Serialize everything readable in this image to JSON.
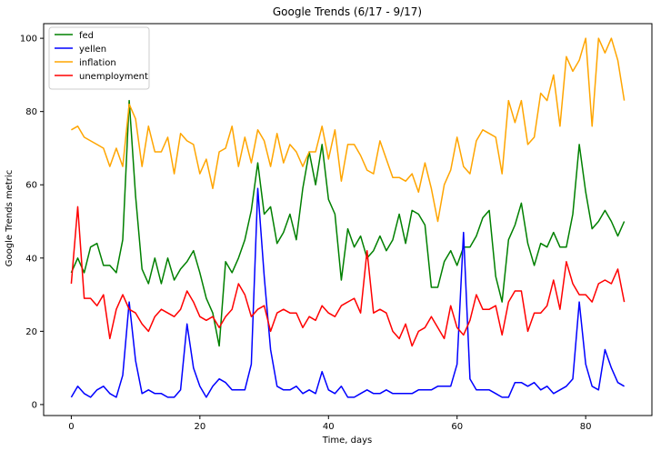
{
  "chart_data": {
    "type": "line",
    "title": "Google Trends (6/17 - 9/17)",
    "xlabel": "Time, days",
    "ylabel": "Google Trends metric",
    "xlim": [
      -4.3,
      90.3
    ],
    "ylim": [
      -3,
      104
    ],
    "xticks": [
      0,
      20,
      40,
      60,
      80
    ],
    "yticks": [
      0,
      20,
      40,
      60,
      80,
      100
    ],
    "grid": false,
    "legend_position": "top-left",
    "x": [
      0,
      1,
      2,
      3,
      4,
      5,
      6,
      7,
      8,
      9,
      10,
      11,
      12,
      13,
      14,
      15,
      16,
      17,
      18,
      19,
      20,
      21,
      22,
      23,
      24,
      25,
      26,
      27,
      28,
      29,
      30,
      31,
      32,
      33,
      34,
      35,
      36,
      37,
      38,
      39,
      40,
      41,
      42,
      43,
      44,
      45,
      46,
      47,
      48,
      49,
      50,
      51,
      52,
      53,
      54,
      55,
      56,
      57,
      58,
      59,
      60,
      61,
      62,
      63,
      64,
      65,
      66,
      67,
      68,
      69,
      70,
      71,
      72,
      73,
      74,
      75,
      76,
      77,
      78,
      79,
      80,
      81,
      82,
      83,
      84,
      85,
      86
    ],
    "series": [
      {
        "name": "fed",
        "color": "#008000",
        "values": [
          36,
          40,
          36,
          43,
          44,
          38,
          38,
          36,
          45,
          83,
          57,
          37,
          33,
          40,
          33,
          40,
          34,
          37,
          39,
          42,
          36,
          29,
          25,
          16,
          39,
          36,
          40,
          45,
          53,
          66,
          52,
          54,
          44,
          47,
          52,
          45,
          59,
          69,
          60,
          71,
          56,
          52,
          34,
          48,
          43,
          46,
          40,
          42,
          46,
          42,
          45,
          52,
          44,
          53,
          52,
          49,
          32,
          32,
          39,
          42,
          38,
          43,
          43,
          46,
          51,
          53,
          35,
          28,
          45,
          49,
          55,
          44,
          38,
          44,
          43,
          47,
          43,
          43,
          52,
          71,
          58,
          48,
          50,
          53,
          50,
          46,
          50
        ]
      },
      {
        "name": "yellen",
        "color": "#0000ff",
        "values": [
          2,
          5,
          3,
          2,
          4,
          5,
          3,
          2,
          8,
          28,
          12,
          3,
          4,
          3,
          3,
          2,
          2,
          4,
          22,
          10,
          5,
          2,
          5,
          7,
          6,
          4,
          4,
          4,
          11,
          59,
          35,
          15,
          5,
          4,
          4,
          5,
          3,
          4,
          3,
          9,
          4,
          3,
          5,
          2,
          2,
          3,
          4,
          3,
          3,
          4,
          3,
          3,
          3,
          3,
          4,
          4,
          4,
          5,
          5,
          5,
          11,
          47,
          7,
          4,
          4,
          4,
          3,
          2,
          2,
          6,
          6,
          5,
          6,
          4,
          5,
          3,
          4,
          5,
          7,
          28,
          11,
          5,
          4,
          15,
          10,
          6,
          5
        ]
      },
      {
        "name": "inflation",
        "color": "#ffa500",
        "values": [
          75,
          76,
          73,
          72,
          71,
          70,
          65,
          70,
          65,
          82,
          78,
          65,
          76,
          69,
          69,
          73,
          63,
          74,
          72,
          71,
          63,
          67,
          59,
          69,
          70,
          76,
          65,
          73,
          66,
          75,
          72,
          65,
          74,
          66,
          71,
          69,
          65,
          69,
          69,
          76,
          67,
          75,
          61,
          71,
          71,
          68,
          64,
          63,
          72,
          67,
          62,
          62,
          61,
          63,
          58,
          66,
          59,
          50,
          60,
          64,
          73,
          65,
          63,
          72,
          75,
          74,
          73,
          63,
          83,
          77,
          83,
          71,
          73,
          85,
          83,
          90,
          76,
          95,
          91,
          94,
          100,
          76,
          100,
          96,
          100,
          94,
          83
        ]
      },
      {
        "name": "unemployment",
        "color": "#ff0000",
        "values": [
          33,
          54,
          29,
          29,
          27,
          30,
          18,
          26,
          30,
          26,
          25,
          22,
          20,
          24,
          26,
          25,
          24,
          26,
          31,
          28,
          24,
          23,
          24,
          21,
          24,
          26,
          33,
          30,
          24,
          26,
          27,
          20,
          25,
          26,
          25,
          25,
          21,
          24,
          23,
          27,
          25,
          24,
          27,
          28,
          29,
          25,
          42,
          25,
          26,
          25,
          20,
          18,
          22,
          16,
          20,
          21,
          24,
          21,
          18,
          27,
          21,
          19,
          23,
          30,
          26,
          26,
          27,
          19,
          28,
          31,
          31,
          20,
          25,
          25,
          27,
          34,
          26,
          39,
          33,
          30,
          30,
          28,
          33,
          34,
          33,
          37,
          28
        ]
      }
    ]
  }
}
